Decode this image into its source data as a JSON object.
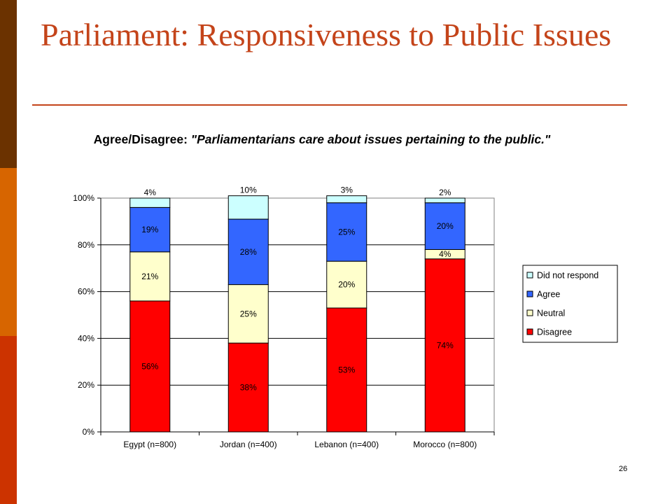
{
  "slide": {
    "title": "Parliament: Responsiveness to Public Issues",
    "page_number": "26",
    "colors": {
      "title": "#c4441a",
      "side_bar": [
        "#6b3200",
        "#d76500",
        "#cc3300"
      ]
    }
  },
  "chart_data": {
    "type": "bar",
    "stacked": true,
    "title_prefix": "Agree/Disagree:",
    "title_quote": "\"Parliamentarians care about issues pertaining to the public.\"",
    "categories": [
      "Egypt (n=800)",
      "Jordan (n=400)",
      "Lebanon (n=400)",
      "Morocco (n=800)"
    ],
    "series": [
      {
        "name": "Disagree",
        "color": "#ff0000",
        "values": [
          56,
          38,
          53,
          74
        ],
        "labels": [
          "56%",
          "38%",
          "53%",
          "74%"
        ]
      },
      {
        "name": "Neutral",
        "color": "#ffffcc",
        "values": [
          21,
          25,
          20,
          4
        ],
        "labels": [
          "21%",
          "25%",
          "20%",
          "4%"
        ]
      },
      {
        "name": "Agree",
        "color": "#3366ff",
        "values": [
          19,
          28,
          25,
          20
        ],
        "labels": [
          "19%",
          "28%",
          "25%",
          "20%"
        ]
      },
      {
        "name": "Did not respond",
        "color": "#ccffff",
        "values": [
          4,
          10,
          3,
          2
        ],
        "labels": [
          "4%",
          "10%",
          "3%",
          "2%"
        ]
      }
    ],
    "y_ticks": [
      "0%",
      "20%",
      "40%",
      "60%",
      "80%",
      "100%"
    ],
    "ylim": [
      0,
      100
    ],
    "grid": true,
    "legend_position": "right",
    "legend_order": [
      "Did not respond",
      "Agree",
      "Neutral",
      "Disagree"
    ]
  }
}
